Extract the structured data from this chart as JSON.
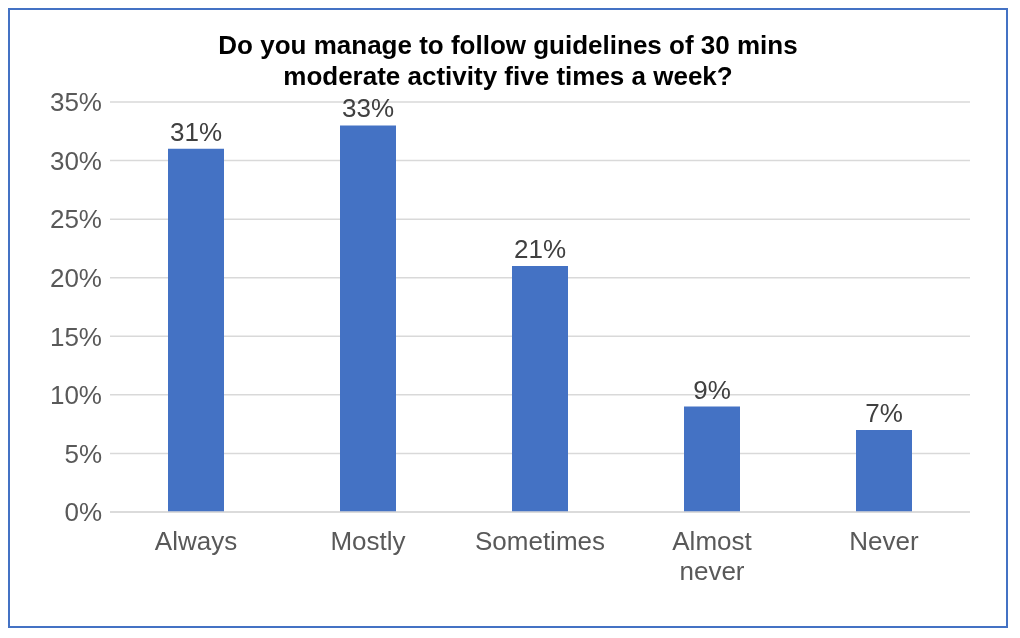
{
  "chart_data": {
    "type": "bar",
    "title": "Do you manage to follow guidelines of 30 mins moderate activity five times a week?",
    "categories": [
      "Always",
      "Mostly",
      "Sometimes",
      "Almost never",
      "Never"
    ],
    "values": [
      31,
      33,
      21,
      9,
      7
    ],
    "value_labels": [
      "31%",
      "33%",
      "21%",
      "9%",
      "7%"
    ],
    "color": "#4472c4",
    "ylim": [
      0,
      35
    ],
    "yticks": [
      {
        "value": 0,
        "label": "0%"
      },
      {
        "value": 5,
        "label": "5%"
      },
      {
        "value": 10,
        "label": "10%"
      },
      {
        "value": 15,
        "label": "15%"
      },
      {
        "value": 20,
        "label": "20%"
      },
      {
        "value": 25,
        "label": "25%"
      },
      {
        "value": 30,
        "label": "30%"
      },
      {
        "value": 35,
        "label": "35%"
      }
    ],
    "grid": "y"
  }
}
